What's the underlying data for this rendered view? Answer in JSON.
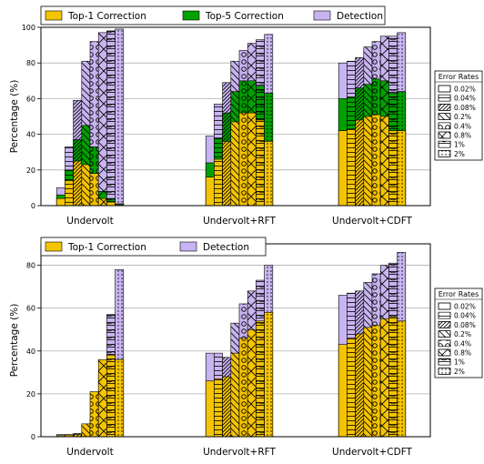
{
  "chart_data": [
    {
      "type": "bar",
      "stacking": "overlaid",
      "ylabel": "Percentage (%)",
      "ylim": [
        0,
        100
      ],
      "yticks": [
        0,
        20,
        40,
        60,
        80,
        100
      ],
      "groups": [
        "Undervolt",
        "Undervolt+RFT",
        "Undervolt+CDFT"
      ],
      "bar_keys": [
        "0.02%",
        "0.04%",
        "0.08%",
        "0.2%",
        "0.4%",
        "0.8%",
        "1%",
        "2%"
      ],
      "series": [
        {
          "name": "Top-1 Correction",
          "key": "top1",
          "color": "#f5c400",
          "values": [
            [
              4,
              14,
              25,
              23,
              18,
              4,
              2,
              0.5
            ],
            [
              16,
              26,
              36,
              47,
              52,
              52,
              48,
              36
            ],
            [
              42,
              43,
              48,
              50,
              51,
              50,
              42,
              42
            ]
          ]
        },
        {
          "name": "Top-5 Correction",
          "key": "top5",
          "color": "#00a000",
          "values": [
            [
              6,
              20,
              37,
              45,
              33,
              8,
              4,
              1
            ],
            [
              24,
              38,
              52,
              64,
              70,
              70,
              67,
              63
            ],
            [
              60,
              61,
              66,
              68,
              71,
              70,
              63,
              64
            ]
          ]
        },
        {
          "name": "Detection",
          "key": "det",
          "color": "#c8b4f0",
          "values": [
            [
              10,
              33,
              59,
              81,
              92,
              97,
              98,
              99
            ],
            [
              39,
              57,
              69,
              81,
              87,
              91,
              93,
              96
            ],
            [
              80,
              81,
              83,
              89,
              92,
              95,
              95,
              97
            ]
          ]
        }
      ],
      "legend_position": "top",
      "legend_title": "Error Rates",
      "legend_items": [
        "0.02%",
        "0.04%",
        "0.08%",
        "0.2%",
        "0.4%",
        "0.8%",
        "1%",
        "2%"
      ]
    },
    {
      "type": "bar",
      "stacking": "overlaid",
      "ylabel": "Percentage (%)",
      "ylim": [
        0,
        90
      ],
      "yticks": [
        0,
        20,
        40,
        60,
        80
      ],
      "groups": [
        "Undervolt",
        "Undervolt+RFT",
        "Undervolt+CDFT"
      ],
      "bar_keys": [
        "0.02%",
        "0.04%",
        "0.08%",
        "0.2%",
        "0.4%",
        "0.8%",
        "1%",
        "2%"
      ],
      "series": [
        {
          "name": "Top-1 Correction",
          "key": "top1",
          "color": "#f5c400",
          "values": [
            [
              0.5,
              0.8,
              1,
              6,
              21,
              36,
              38,
              36
            ],
            [
              26,
              27,
              28,
              39,
              46,
              50,
              54,
              58
            ],
            [
              43,
              46,
              48,
              51,
              52,
              55,
              56,
              54
            ]
          ]
        },
        {
          "name": "Detection",
          "key": "det",
          "color": "#c8b4f0",
          "values": [
            [
              1,
              1,
              1.5,
              3,
              8,
              29,
              57,
              78
            ],
            [
              39,
              39,
              37,
              53,
              62,
              68,
              73,
              80
            ],
            [
              66,
              67,
              68,
              72,
              76,
              80,
              81,
              86
            ]
          ]
        }
      ],
      "legend_position": "top",
      "legend_title": "Error Rates",
      "legend_items": [
        "0.02%",
        "0.04%",
        "0.08%",
        "0.2%",
        "0.4%",
        "0.8%",
        "1%",
        "2%"
      ]
    }
  ]
}
